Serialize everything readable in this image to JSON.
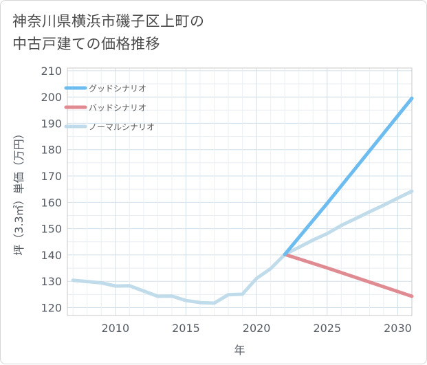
{
  "chart_data": {
    "type": "line",
    "title": "神奈川県横浜市磯子区上町の\n中古戸建ての価格推移",
    "xlabel": "年",
    "ylabel": "坪（3.3㎡）単価（万円）",
    "xlim": [
      2006.6,
      2031
    ],
    "ylim": [
      117,
      211
    ],
    "xticks": [
      2010,
      2015,
      2020,
      2025,
      2030
    ],
    "yticks": [
      120,
      130,
      140,
      150,
      160,
      170,
      180,
      190,
      200,
      210
    ],
    "grid": true,
    "legend_position": "top-left",
    "series": [
      {
        "name": "グッドシナリオ",
        "color": "#6dbcf0",
        "x": [
          2022,
          2025,
          2031
        ],
        "y": [
          140.2,
          159.6,
          199.5
        ]
      },
      {
        "name": "バッドシナリオ",
        "color": "#e08a92",
        "x": [
          2022,
          2025,
          2031
        ],
        "y": [
          140.2,
          135.1,
          124.3
        ]
      },
      {
        "name": "ノーマルシナリオ",
        "color": "#c0dceb",
        "x": [
          2007,
          2008,
          2009,
          2010,
          2011,
          2012,
          2013,
          2014,
          2015,
          2016,
          2017,
          2018,
          2019,
          2020,
          2021,
          2022,
          2023,
          2024,
          2025,
          2026,
          2027,
          2028,
          2029,
          2030,
          2031
        ],
        "y": [
          130.4,
          129.9,
          129.4,
          128.2,
          128.3,
          126.3,
          124.3,
          124.4,
          122.7,
          121.9,
          121.7,
          124.9,
          125.1,
          131.1,
          134.8,
          140.2,
          142.9,
          145.7,
          148.1,
          151.2,
          153.8,
          156.4,
          158.9,
          161.6,
          164.2
        ]
      }
    ]
  }
}
